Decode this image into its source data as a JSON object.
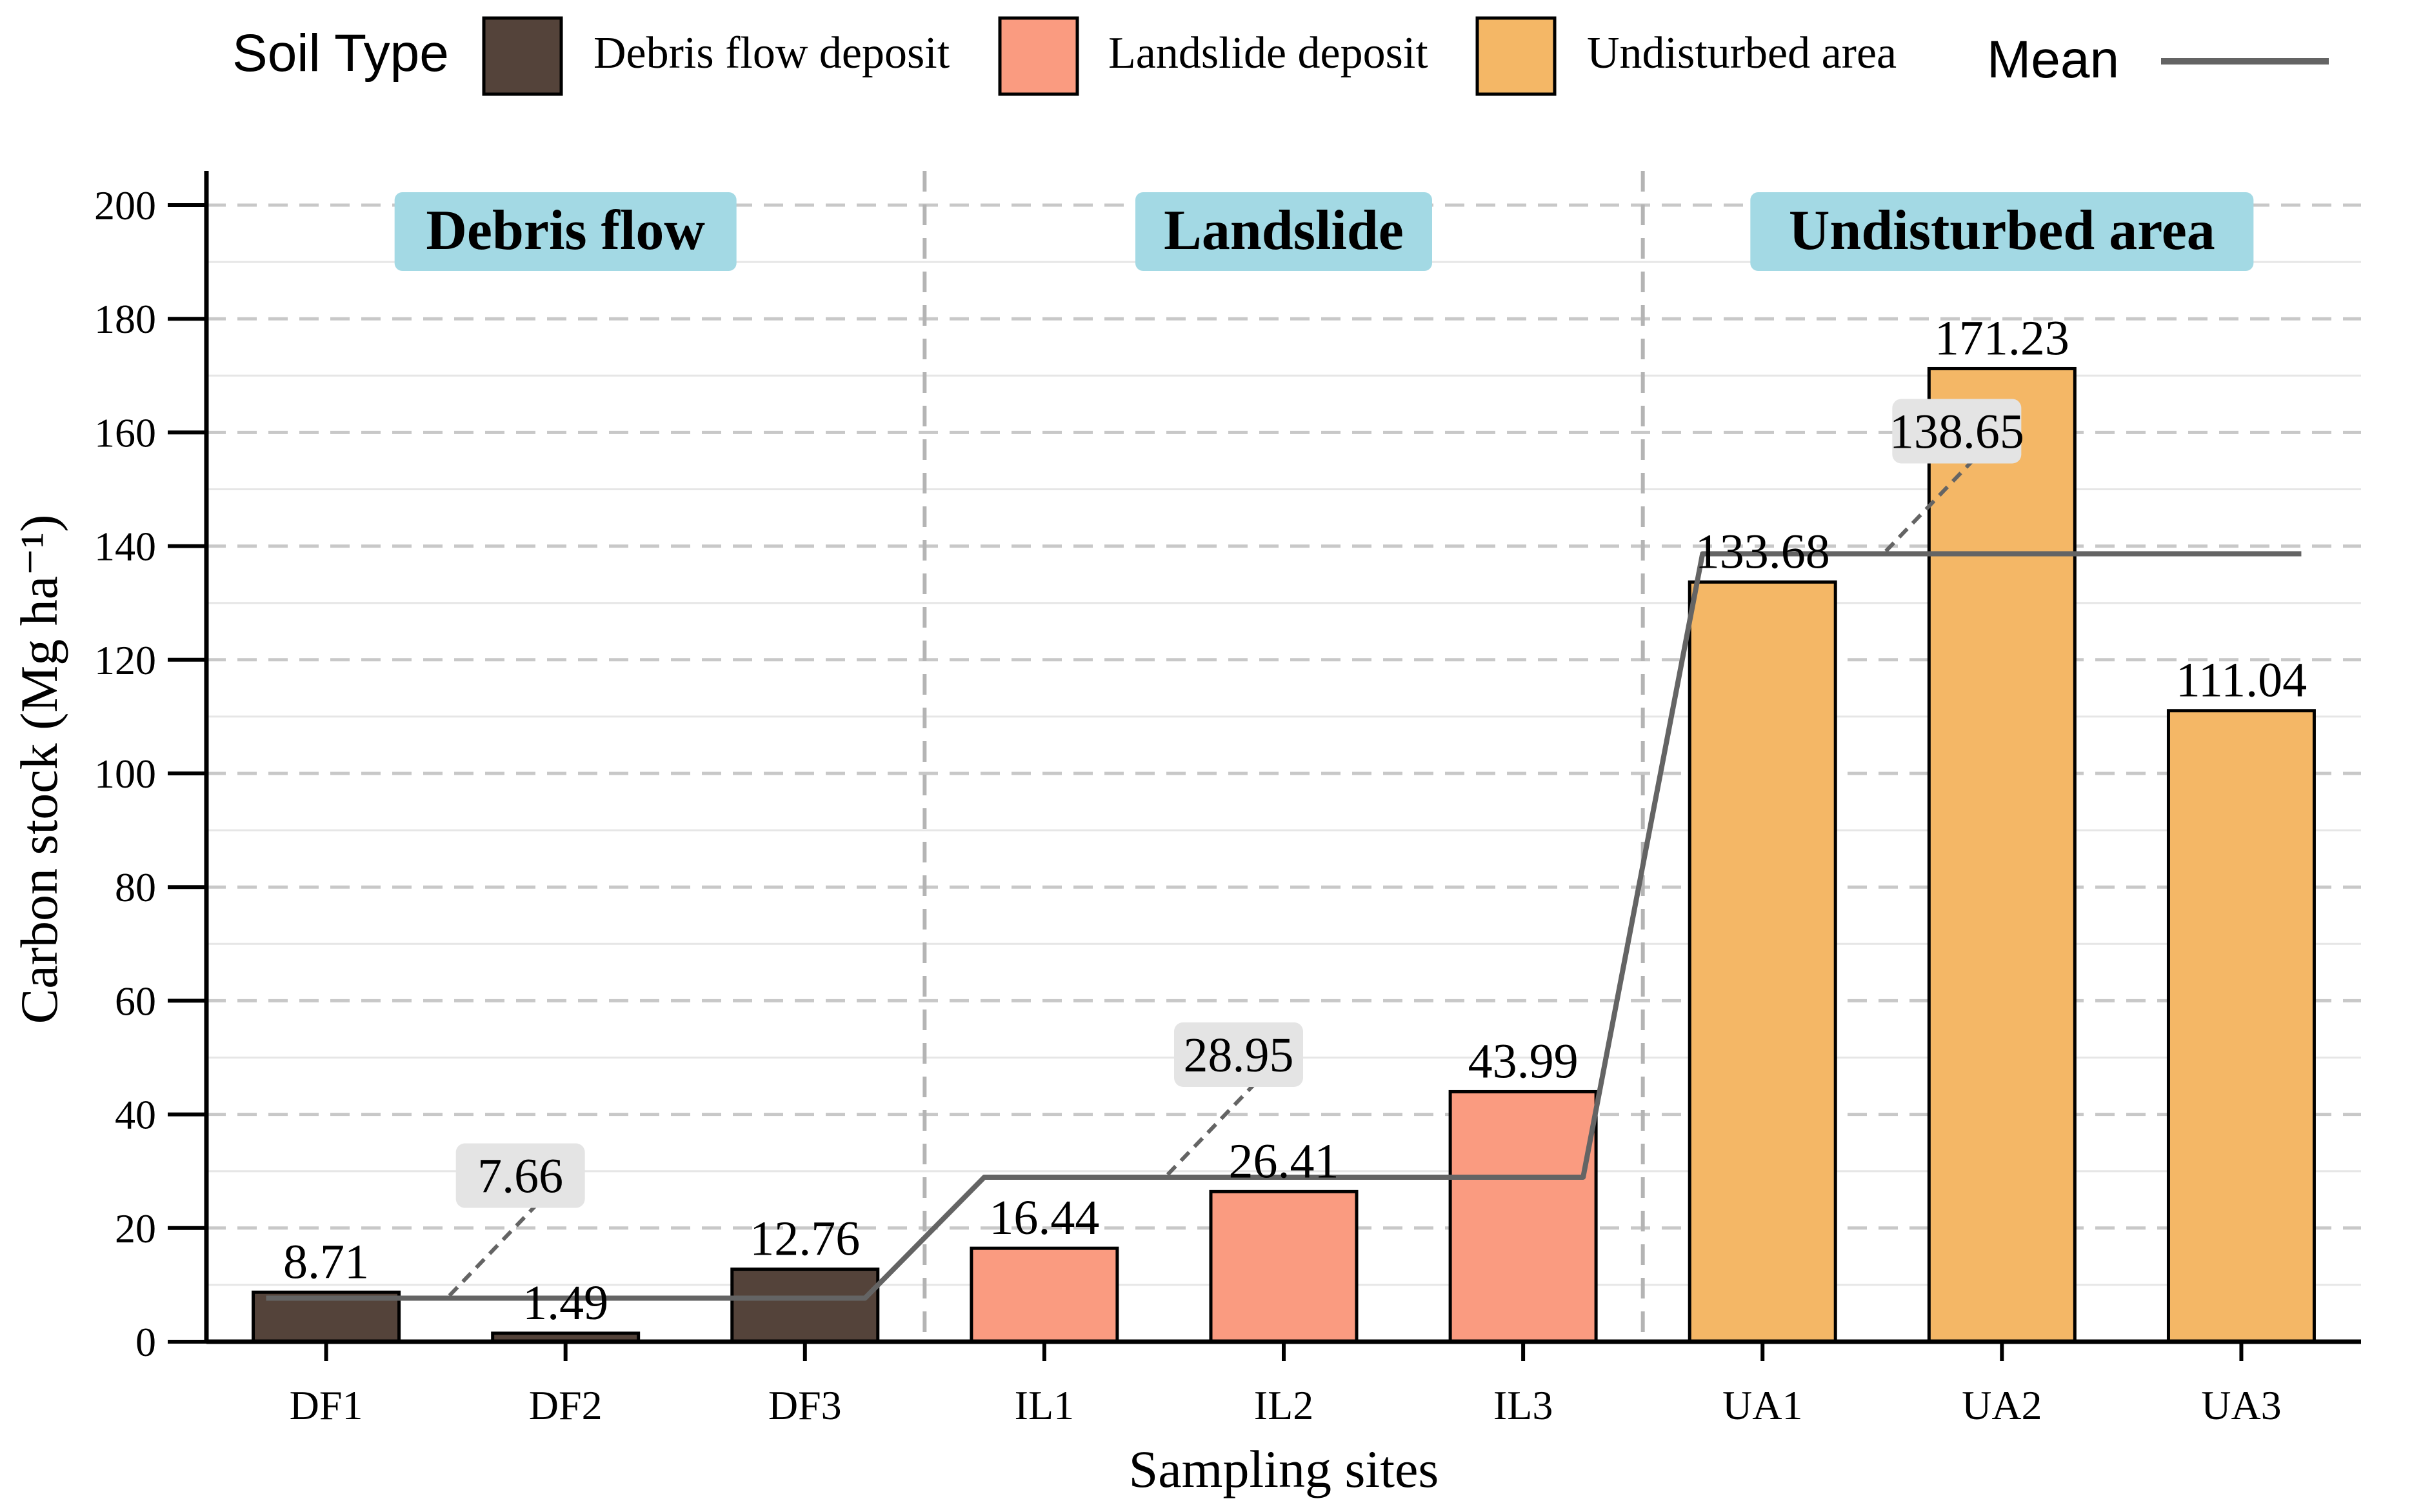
{
  "legend": {
    "title": "Soil Type",
    "items": [
      {
        "label": "Debris flow deposit",
        "color": "#54433a"
      },
      {
        "label": "Landslide deposit",
        "color": "#fa9b80"
      },
      {
        "label": "Undisturbed area",
        "color": "#f4b766"
      }
    ],
    "mean_label": "Mean",
    "mean_color": "#646464"
  },
  "chart_data": {
    "type": "bar",
    "title": "",
    "xlabel": "Sampling sites",
    "ylabel": "Carbon stock (Mg ha⁻¹)",
    "ylim": [
      0,
      200
    ],
    "yticks": [
      0,
      20,
      40,
      60,
      80,
      100,
      120,
      140,
      160,
      180,
      200
    ],
    "categories": [
      "DF1",
      "DF2",
      "DF3",
      "IL1",
      "IL2",
      "IL3",
      "UA1",
      "UA2",
      "UA3"
    ],
    "values": [
      8.71,
      1.49,
      12.76,
      16.44,
      26.41,
      43.99,
      133.68,
      171.23,
      111.04
    ],
    "value_labels": [
      "8.71",
      "1.49",
      "12.76",
      "16.44",
      "26.41",
      "43.99",
      "133.68",
      "171.23",
      "111.04"
    ],
    "groups": [
      {
        "name": "Debris flow",
        "soil_type": "Debris flow deposit",
        "color": "#54433a",
        "sites": [
          "DF1",
          "DF2",
          "DF3"
        ],
        "mean": 7.66,
        "mean_label": "7.66"
      },
      {
        "name": "Landslide",
        "soil_type": "Landslide deposit",
        "color": "#fa9b80",
        "sites": [
          "IL1",
          "IL2",
          "IL3"
        ],
        "mean": 28.95,
        "mean_label": "28.95"
      },
      {
        "name": "Undisturbed area",
        "soil_type": "Undisturbed area",
        "color": "#f4b766",
        "sites": [
          "UA1",
          "UA2",
          "UA3"
        ],
        "mean": 138.65,
        "mean_label": "138.65"
      }
    ],
    "panel_label_color": "#a3d9e4",
    "grid": true,
    "legend_position": "top"
  }
}
